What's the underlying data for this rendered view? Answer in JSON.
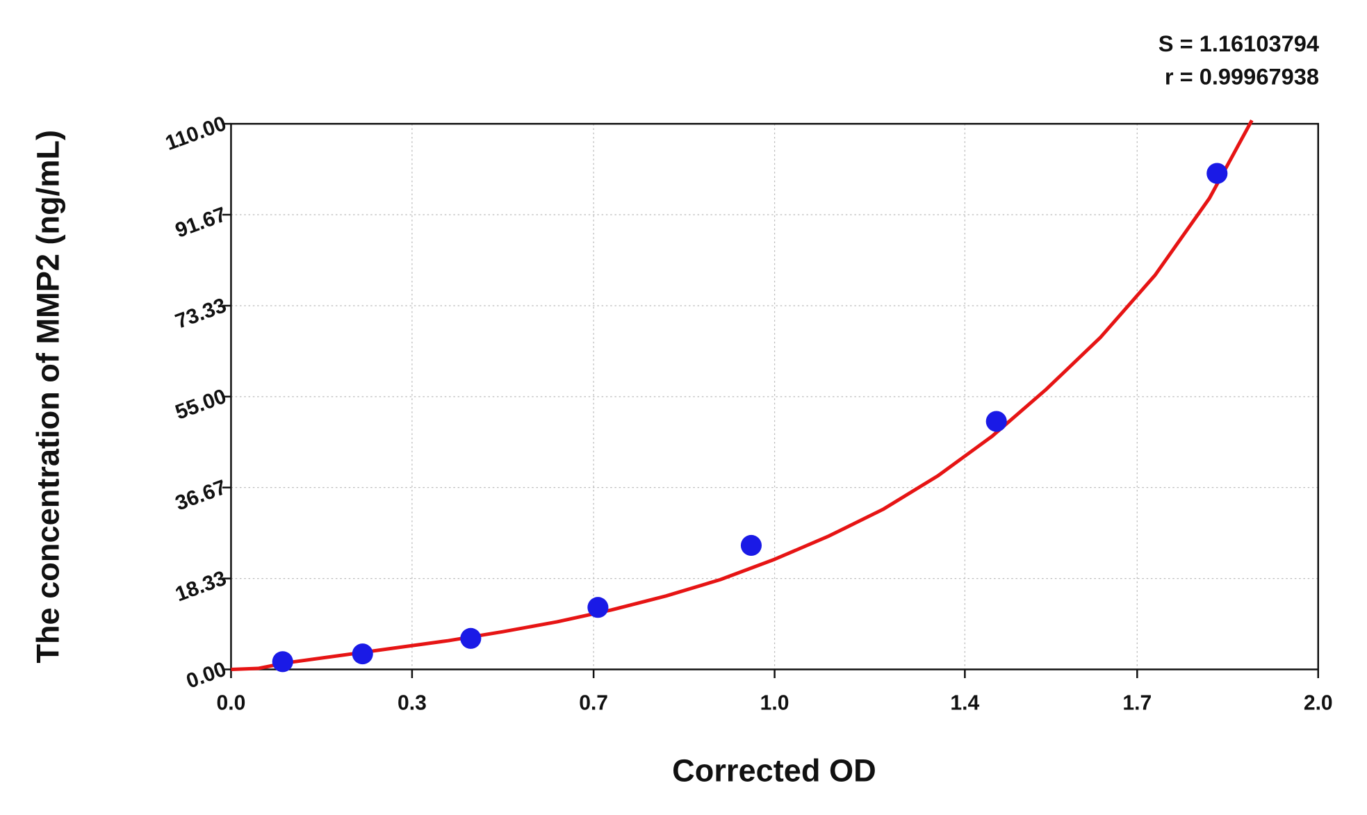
{
  "chart_data": {
    "type": "scatter",
    "annotations": [
      "S = 1.16103794",
      "r = 0.99967938"
    ],
    "x_label": "Corrected OD",
    "y_label": "The concentration of MMP2 (ng/mL)",
    "xlim": [
      0,
      2
    ],
    "ylim": [
      0,
      110
    ],
    "xticks": [
      {
        "value": 0,
        "label": "0.0"
      },
      {
        "value": 0.333,
        "label": "0.3"
      },
      {
        "value": 0.667,
        "label": "0.7"
      },
      {
        "value": 1,
        "label": "1.0"
      },
      {
        "value": 1.35,
        "label": "1.4"
      },
      {
        "value": 1.667,
        "label": "1.7"
      },
      {
        "value": 2,
        "label": "2.0"
      }
    ],
    "yticks": [
      {
        "value": 0,
        "label": "0.00"
      },
      18.33,
      36.67,
      {
        "value": 55,
        "label": "55.00"
      },
      73.33,
      91.67,
      {
        "value": 110,
        "label": "110.00"
      }
    ],
    "grid": true,
    "points": {
      "color": "#1a1ae6",
      "x": [
        0.095,
        0.242,
        0.441,
        0.675,
        0.957,
        1.408,
        1.814
      ],
      "y": [
        1.56,
        3.13,
        6.25,
        12.5,
        25,
        50,
        100
      ]
    },
    "curve": {
      "color": "#e61414",
      "x": [
        0.0,
        0.05,
        0.1,
        0.2,
        0.3,
        0.4,
        0.5,
        0.6,
        0.7,
        0.8,
        0.9,
        1.0,
        1.1,
        1.2,
        1.3,
        1.4,
        1.5,
        1.6,
        1.7,
        1.8,
        1.878
      ],
      "y": [
        0,
        0.2,
        1.3,
        2.8,
        4.3,
        5.8,
        7.6,
        9.6,
        12.0,
        14.8,
        18.1,
        22.2,
        26.9,
        32.3,
        39.0,
        47.0,
        56.5,
        67.0,
        79.5,
        95.0,
        110.7
      ]
    }
  }
}
